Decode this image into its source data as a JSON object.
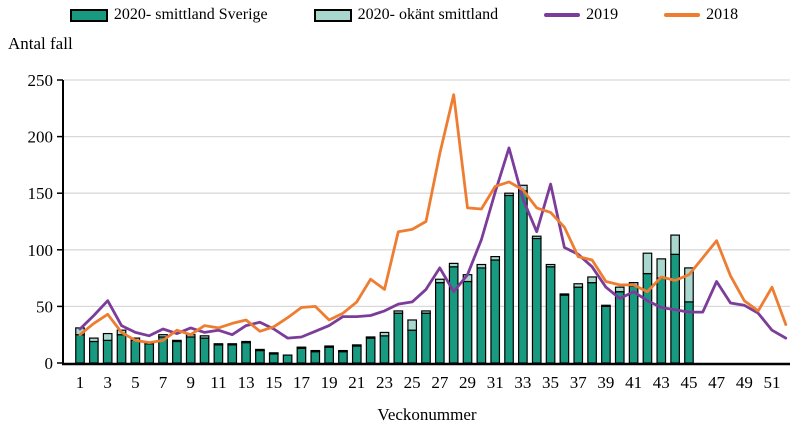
{
  "legend": {
    "items": [
      {
        "label": "2020- smittland Sverige",
        "type": "bar",
        "color": "#179a80"
      },
      {
        "label": "2020- okänt smittland",
        "type": "bar",
        "color": "#a8d8cd"
      },
      {
        "label": "2019",
        "type": "line",
        "color": "#7c3d9a"
      },
      {
        "label": "2018",
        "type": "line",
        "color": "#ee7d31"
      }
    ]
  },
  "chart_data": {
    "type": "bar",
    "title": "",
    "ylabel": "Antal fall",
    "xlabel": "Veckonummer",
    "ylim": [
      0,
      250
    ],
    "y_ticks": [
      0,
      50,
      100,
      150,
      200,
      250
    ],
    "x_tick_labels": [
      1,
      3,
      5,
      7,
      9,
      11,
      13,
      15,
      17,
      19,
      21,
      23,
      25,
      27,
      29,
      31,
      33,
      35,
      37,
      39,
      41,
      43,
      45,
      47,
      49,
      51
    ],
    "weeks": 52,
    "grid": "horizontal",
    "legend_position": "top",
    "series": [
      {
        "name": "2020- smittland Sverige",
        "render": "stacked-bar",
        "color": "#179a80",
        "values": [
          25,
          19,
          20,
          25,
          20,
          17,
          23,
          19,
          23,
          22,
          16,
          16,
          18,
          11,
          8,
          7,
          13,
          10,
          14,
          10,
          15,
          22,
          24,
          44,
          29,
          44,
          71,
          85,
          72,
          84,
          91,
          148,
          152,
          110,
          85,
          60,
          67,
          71,
          50,
          63,
          68,
          79,
          75,
          96,
          54
        ]
      },
      {
        "name": "2020- okänt smittland",
        "render": "stacked-bar",
        "color": "#a8d8cd",
        "values": [
          6,
          3,
          6,
          4,
          2,
          1,
          2,
          1,
          2,
          2,
          1,
          1,
          1,
          1,
          1,
          0,
          1,
          1,
          1,
          1,
          1,
          1,
          3,
          2,
          9,
          2,
          3,
          3,
          6,
          3,
          3,
          2,
          5,
          2,
          2,
          1,
          3,
          5,
          1,
          4,
          3,
          18,
          17,
          17,
          30
        ]
      },
      {
        "name": "2019",
        "render": "line",
        "color": "#7c3d9a",
        "values": [
          30,
          42,
          55,
          33,
          27,
          24,
          30,
          26,
          31,
          27,
          29,
          25,
          33,
          36,
          30,
          22,
          23,
          28,
          33,
          41,
          41,
          42,
          46,
          52,
          54,
          65,
          84,
          63,
          78,
          109,
          151,
          190,
          145,
          116,
          158,
          102,
          96,
          85,
          67,
          57,
          63,
          55,
          49,
          47,
          45,
          45,
          72,
          53,
          51,
          44,
          29,
          22
        ]
      },
      {
        "name": "2018",
        "render": "line",
        "color": "#ee7d31",
        "values": [
          25,
          35,
          43,
          27,
          20,
          18,
          20,
          29,
          25,
          33,
          31,
          35,
          38,
          28,
          32,
          40,
          49,
          50,
          38,
          44,
          54,
          74,
          65,
          116,
          118,
          125,
          185,
          237,
          137,
          136,
          156,
          160,
          153,
          137,
          133,
          120,
          94,
          91,
          72,
          69,
          69,
          63,
          76,
          73,
          78,
          93,
          108,
          77,
          55,
          46,
          67,
          34
        ]
      }
    ]
  },
  "style": {
    "grid_color": "#d9d9d9",
    "axis_color": "#000000",
    "bar_border_color": "#000000"
  }
}
